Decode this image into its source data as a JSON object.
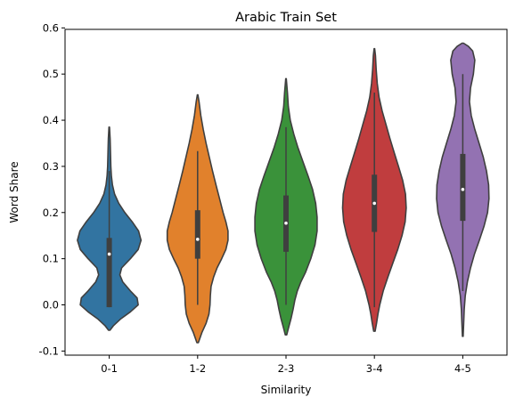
{
  "chart_data": {
    "type": "violin",
    "title": "Arabic Train Set",
    "xlabel": "Similarity",
    "ylabel": "Word Share",
    "ylim": [
      -0.11,
      0.6
    ],
    "yticks": [
      "-0.1",
      "0.0",
      "0.1",
      "0.2",
      "0.3",
      "0.4",
      "0.5",
      "0.6"
    ],
    "categories": [
      "0-1",
      "1-2",
      "2-3",
      "3-4",
      "4-5"
    ],
    "grid": false,
    "legend": "none",
    "colors": {
      "0-1": "#3274a1",
      "1-2": "#e1812c",
      "2-3": "#3a923a",
      "3-4": "#c03d3e",
      "4-5": "#9372b2",
      "outline": "#3f3f3f",
      "box": "#3f3f3f",
      "median": "#ffffff"
    },
    "violins": [
      {
        "category": "0-1",
        "y_min": -0.055,
        "y_max": 0.385,
        "whisker_low": -0.005,
        "q1": -0.005,
        "median": 0.11,
        "q3": 0.145,
        "whisker_high": 0.29,
        "profile": [
          [
            -0.055,
            0.02
          ],
          [
            -0.045,
            0.12
          ],
          [
            -0.03,
            0.33
          ],
          [
            -0.015,
            0.6
          ],
          [
            0.0,
            0.82
          ],
          [
            0.015,
            0.79
          ],
          [
            0.03,
            0.6
          ],
          [
            0.05,
            0.38
          ],
          [
            0.065,
            0.3
          ],
          [
            0.08,
            0.35
          ],
          [
            0.1,
            0.6
          ],
          [
            0.12,
            0.82
          ],
          [
            0.14,
            0.9
          ],
          [
            0.16,
            0.83
          ],
          [
            0.18,
            0.65
          ],
          [
            0.2,
            0.44
          ],
          [
            0.22,
            0.27
          ],
          [
            0.24,
            0.15
          ],
          [
            0.26,
            0.09
          ],
          [
            0.28,
            0.06
          ],
          [
            0.3,
            0.045
          ],
          [
            0.33,
            0.035
          ],
          [
            0.36,
            0.025
          ],
          [
            0.385,
            0.008
          ]
        ]
      },
      {
        "category": "1-2",
        "y_min": -0.082,
        "y_max": 0.455,
        "whisker_low": 0.0,
        "q1": 0.1,
        "median": 0.142,
        "q3": 0.205,
        "whisker_high": 0.333,
        "profile": [
          [
            -0.082,
            0.02
          ],
          [
            -0.06,
            0.12
          ],
          [
            -0.04,
            0.24
          ],
          [
            -0.02,
            0.32
          ],
          [
            0.0,
            0.35
          ],
          [
            0.02,
            0.36
          ],
          [
            0.04,
            0.38
          ],
          [
            0.06,
            0.45
          ],
          [
            0.08,
            0.55
          ],
          [
            0.1,
            0.68
          ],
          [
            0.12,
            0.8
          ],
          [
            0.14,
            0.86
          ],
          [
            0.16,
            0.86
          ],
          [
            0.18,
            0.8
          ],
          [
            0.2,
            0.72
          ],
          [
            0.23,
            0.62
          ],
          [
            0.26,
            0.52
          ],
          [
            0.29,
            0.42
          ],
          [
            0.32,
            0.33
          ],
          [
            0.35,
            0.24
          ],
          [
            0.38,
            0.16
          ],
          [
            0.41,
            0.09
          ],
          [
            0.44,
            0.04
          ],
          [
            0.455,
            0.008
          ]
        ]
      },
      {
        "category": "2-3",
        "y_min": -0.065,
        "y_max": 0.49,
        "whisker_low": 0.0,
        "q1": 0.115,
        "median": 0.177,
        "q3": 0.237,
        "whisker_high": 0.385,
        "profile": [
          [
            -0.065,
            0.02
          ],
          [
            -0.05,
            0.07
          ],
          [
            -0.03,
            0.14
          ],
          [
            -0.01,
            0.2
          ],
          [
            0.01,
            0.25
          ],
          [
            0.03,
            0.32
          ],
          [
            0.05,
            0.42
          ],
          [
            0.07,
            0.55
          ],
          [
            0.1,
            0.7
          ],
          [
            0.13,
            0.82
          ],
          [
            0.16,
            0.88
          ],
          [
            0.19,
            0.88
          ],
          [
            0.22,
            0.84
          ],
          [
            0.25,
            0.75
          ],
          [
            0.28,
            0.62
          ],
          [
            0.31,
            0.48
          ],
          [
            0.34,
            0.34
          ],
          [
            0.37,
            0.22
          ],
          [
            0.4,
            0.12
          ],
          [
            0.43,
            0.065
          ],
          [
            0.46,
            0.04
          ],
          [
            0.49,
            0.008
          ]
        ]
      },
      {
        "category": "3-4",
        "y_min": -0.057,
        "y_max": 0.555,
        "whisker_low": -0.005,
        "q1": 0.158,
        "median": 0.22,
        "q3": 0.282,
        "whisker_high": 0.46,
        "profile": [
          [
            -0.057,
            0.02
          ],
          [
            -0.04,
            0.06
          ],
          [
            -0.02,
            0.1
          ],
          [
            0.0,
            0.15
          ],
          [
            0.03,
            0.25
          ],
          [
            0.06,
            0.38
          ],
          [
            0.09,
            0.52
          ],
          [
            0.12,
            0.66
          ],
          [
            0.15,
            0.78
          ],
          [
            0.18,
            0.87
          ],
          [
            0.21,
            0.9
          ],
          [
            0.24,
            0.88
          ],
          [
            0.27,
            0.8
          ],
          [
            0.3,
            0.68
          ],
          [
            0.33,
            0.56
          ],
          [
            0.36,
            0.44
          ],
          [
            0.39,
            0.33
          ],
          [
            0.42,
            0.22
          ],
          [
            0.45,
            0.13
          ],
          [
            0.48,
            0.08
          ],
          [
            0.51,
            0.05
          ],
          [
            0.54,
            0.03
          ],
          [
            0.555,
            0.008
          ]
        ]
      },
      {
        "category": "4-5",
        "y_min": -0.068,
        "y_max": 0.567,
        "whisker_low": 0.03,
        "q1": 0.182,
        "median": 0.25,
        "q3": 0.327,
        "whisker_high": 0.5,
        "profile": [
          [
            -0.068,
            0.01
          ],
          [
            -0.04,
            0.025
          ],
          [
            -0.01,
            0.04
          ],
          [
            0.02,
            0.07
          ],
          [
            0.05,
            0.13
          ],
          [
            0.08,
            0.22
          ],
          [
            0.11,
            0.33
          ],
          [
            0.14,
            0.47
          ],
          [
            0.17,
            0.6
          ],
          [
            0.2,
            0.7
          ],
          [
            0.23,
            0.74
          ],
          [
            0.26,
            0.73
          ],
          [
            0.29,
            0.67
          ],
          [
            0.32,
            0.58
          ],
          [
            0.35,
            0.46
          ],
          [
            0.38,
            0.34
          ],
          [
            0.41,
            0.24
          ],
          [
            0.44,
            0.19
          ],
          [
            0.47,
            0.22
          ],
          [
            0.5,
            0.3
          ],
          [
            0.53,
            0.34
          ],
          [
            0.55,
            0.28
          ],
          [
            0.56,
            0.16
          ],
          [
            0.567,
            0.02
          ]
        ]
      }
    ]
  }
}
